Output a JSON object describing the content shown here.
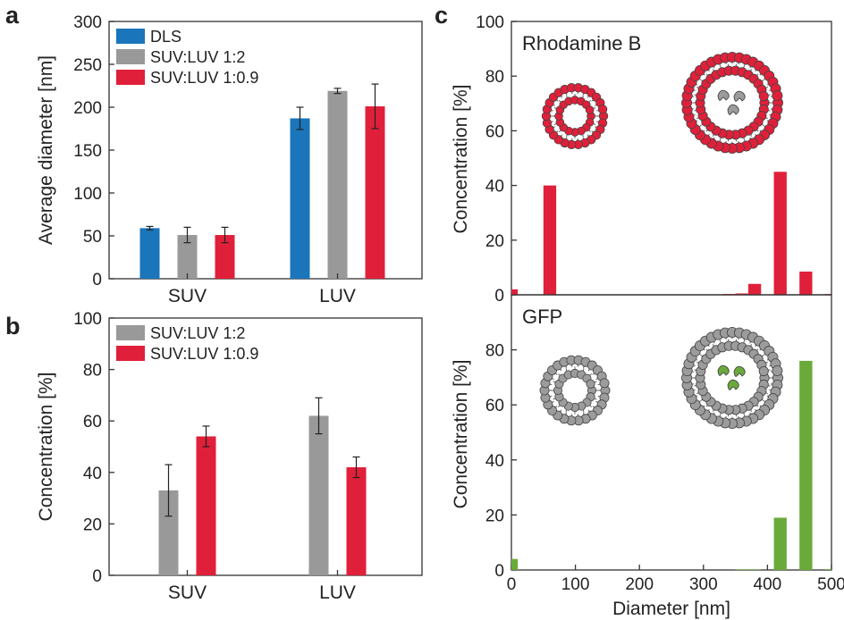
{
  "colors": {
    "dls": "#1a75bb",
    "suv_luv_1_2": "#999999",
    "suv_luv_1_0_9": "#e0203a",
    "gfp": "#6aaa3a",
    "head_gray": "#9c9c9c",
    "axis": "#333333"
  },
  "panels": {
    "a": {
      "letter": "a"
    },
    "b": {
      "letter": "b"
    },
    "c": {
      "letter": "c"
    }
  },
  "chart_data": [
    {
      "id": "a",
      "type": "bar",
      "ylabel": "Average diameter [nm]",
      "ylim": [
        0,
        300
      ],
      "yticks": [
        "0",
        "50",
        "100",
        "150",
        "200",
        "250",
        "300"
      ],
      "categories": [
        "SUV",
        "LUV"
      ],
      "legend_position": "top-left",
      "series": [
        {
          "name": "DLS",
          "values": [
            59,
            187
          ],
          "errors": [
            2,
            13
          ]
        },
        {
          "name": "SUV:LUV 1:2",
          "values": [
            51,
            219
          ],
          "errors": [
            9,
            3
          ]
        },
        {
          "name": "SUV:LUV 1:0.9",
          "values": [
            51,
            201
          ],
          "errors": [
            9,
            26
          ]
        }
      ]
    },
    {
      "id": "b",
      "type": "bar",
      "ylabel": "Concentration [%]",
      "ylim": [
        0,
        100
      ],
      "yticks": [
        "0",
        "20",
        "40",
        "60",
        "80",
        "100"
      ],
      "categories": [
        "SUV",
        "LUV"
      ],
      "legend_position": "top-left",
      "series": [
        {
          "name": "SUV:LUV 1:2",
          "values": [
            33,
            62
          ],
          "errors": [
            10,
            7
          ]
        },
        {
          "name": "SUV:LUV 1:0.9",
          "values": [
            54,
            42
          ],
          "errors": [
            4,
            4
          ]
        }
      ]
    },
    {
      "id": "c-top",
      "type": "bar",
      "annotation": "Rhodamine B",
      "ylabel": "Concentration [%]",
      "ylim": [
        0,
        100
      ],
      "xlim": [
        0,
        500
      ],
      "yticks": [
        "0",
        "20",
        "40",
        "60",
        "80",
        "100"
      ],
      "x": [
        0,
        60,
        340,
        360,
        380,
        420,
        460,
        500
      ],
      "values": [
        2,
        40,
        0.3,
        0.5,
        4,
        45,
        8.5,
        0.3
      ]
    },
    {
      "id": "c-bottom",
      "type": "bar",
      "annotation": "GFP",
      "xlabel": "Diameter [nm]",
      "ylabel": "Concentration [%]",
      "ylim": [
        0,
        100
      ],
      "xlim": [
        0,
        500
      ],
      "yticks": [
        "0",
        "20",
        "40",
        "60",
        "80"
      ],
      "xticks": [
        "0",
        "100",
        "200",
        "300",
        "400",
        "500"
      ],
      "x": [
        0,
        360,
        380,
        420,
        460,
        500
      ],
      "values": [
        4,
        0.2,
        0.2,
        19,
        76,
        0.3
      ]
    }
  ]
}
